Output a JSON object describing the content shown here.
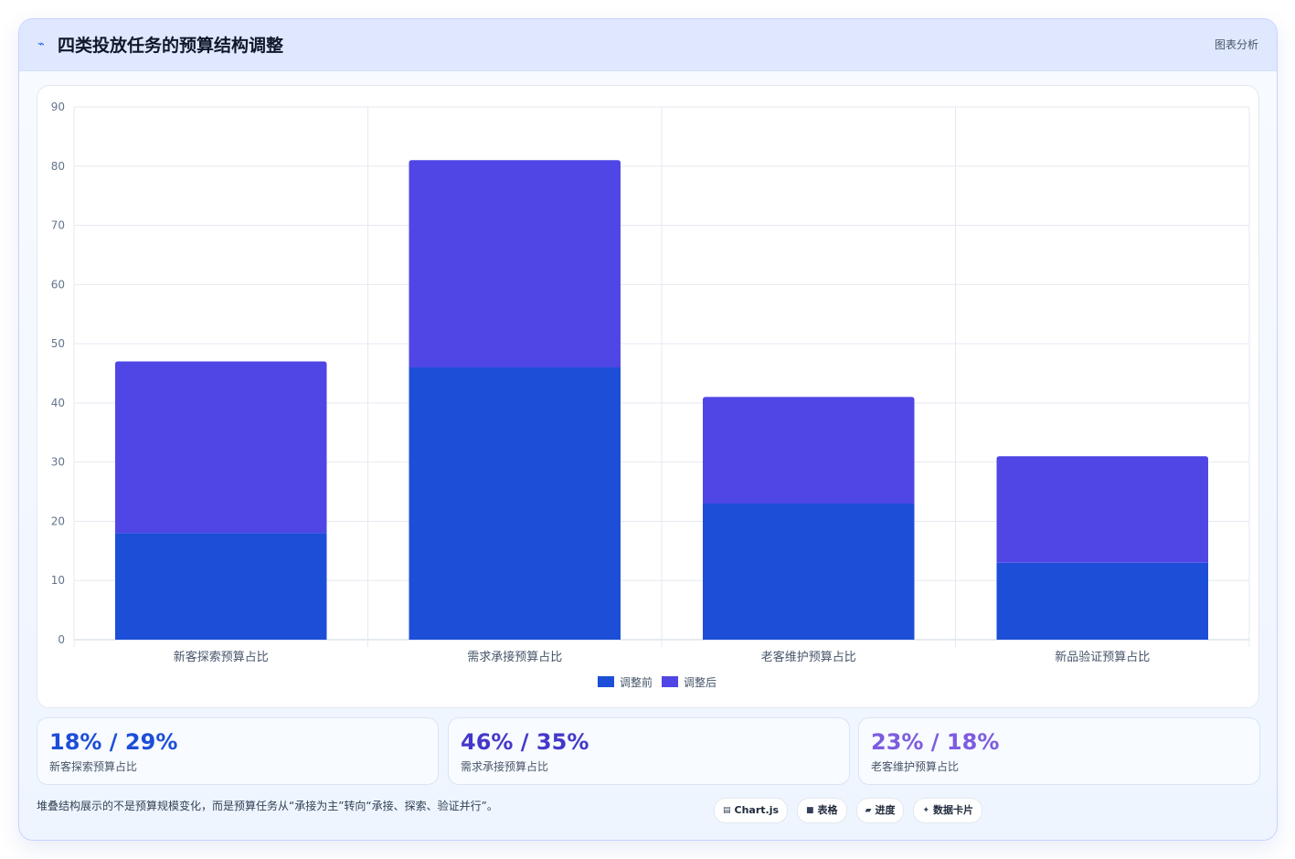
{
  "header": {
    "icon": "pulse-icon",
    "title": "四类投放任务的预算结构调整",
    "tag": "图表分析"
  },
  "chart_data": {
    "type": "bar",
    "stacked": true,
    "categories": [
      "新客探索预算占比",
      "需求承接预算占比",
      "老客维护预算占比",
      "新品验证预算占比"
    ],
    "series": [
      {
        "name": "调整前",
        "values": [
          18,
          46,
          23,
          13
        ],
        "color": "#1d4ed8"
      },
      {
        "name": "调整后",
        "values": [
          29,
          35,
          18,
          18
        ],
        "color": "#4f46e5"
      }
    ],
    "ylim": [
      0,
      90
    ],
    "yticks": [
      0,
      10,
      20,
      30,
      40,
      50,
      60,
      70,
      80,
      90
    ],
    "grid": true,
    "legend_position": "bottom",
    "title": "",
    "xlabel": "",
    "ylabel": ""
  },
  "stats": [
    {
      "value": "18% / 29%",
      "label": "新客探索预算占比",
      "color": "#1d4ed8"
    },
    {
      "value": "46% / 35%",
      "label": "需求承接预算占比",
      "color": "#4338ca"
    },
    {
      "value": "23% / 18%",
      "label": "老客维护预算占比",
      "color": "#7c5ce0"
    }
  ],
  "footer": {
    "note": "堆叠结构展示的不是预算规模变化，而是预算任务从“承接为主”转向“承接、探索、验证并行”。",
    "pills": [
      {
        "icon": "chart-icon",
        "glyph": "▤",
        "label": "Chart.js"
      },
      {
        "icon": "table-icon",
        "glyph": "■",
        "label": "表格"
      },
      {
        "icon": "progress-icon",
        "glyph": "▰",
        "label": "进度"
      },
      {
        "icon": "sparkle-icon",
        "glyph": "✦",
        "label": "数据卡片"
      }
    ]
  }
}
